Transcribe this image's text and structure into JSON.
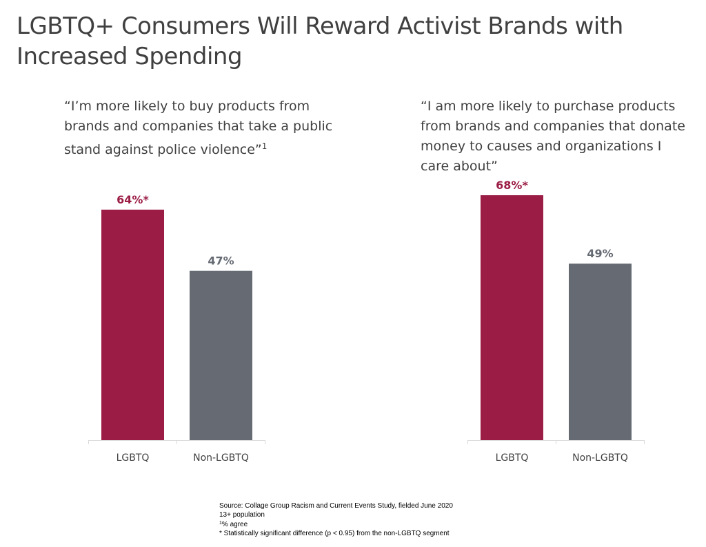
{
  "title_line1": "LGBTQ+ Consumers Will Reward Activist Brands with",
  "title_line2": "Increased Spending",
  "colors": {
    "lgbtq": "#9b1c45",
    "non_lgbtq": "#656a73",
    "axis": "#d9d9d9"
  },
  "chart_data": [
    {
      "type": "bar",
      "quote_lines": [
        "“I’m more likely to buy products from",
        "brands and companies that take a public",
        "stand against police violence”"
      ],
      "quote_footnote": "1",
      "categories": [
        "LGBTQ",
        "Non-LGBTQ"
      ],
      "values": [
        64,
        47
      ],
      "data_labels": [
        "64%*",
        "47%"
      ],
      "ylim": [
        0,
        100
      ]
    },
    {
      "type": "bar",
      "quote_lines": [
        "“I am more likely to purchase products",
        "from brands and companies that donate",
        "money to causes and organizations I",
        "care about”"
      ],
      "categories": [
        "LGBTQ",
        "Non-LGBTQ"
      ],
      "values": [
        68,
        49
      ],
      "data_labels": [
        "68%*",
        "49%"
      ],
      "ylim": [
        0,
        100
      ]
    }
  ],
  "footnotes": {
    "source": "Source: Collage Group Racism and Current Events Study, fielded June 2020",
    "population": "13+ population",
    "note1_marker": "1",
    "note1_text": "% agree",
    "significance": "* Statistically significant difference (p < 0.95) from the non-LGBTQ segment"
  }
}
